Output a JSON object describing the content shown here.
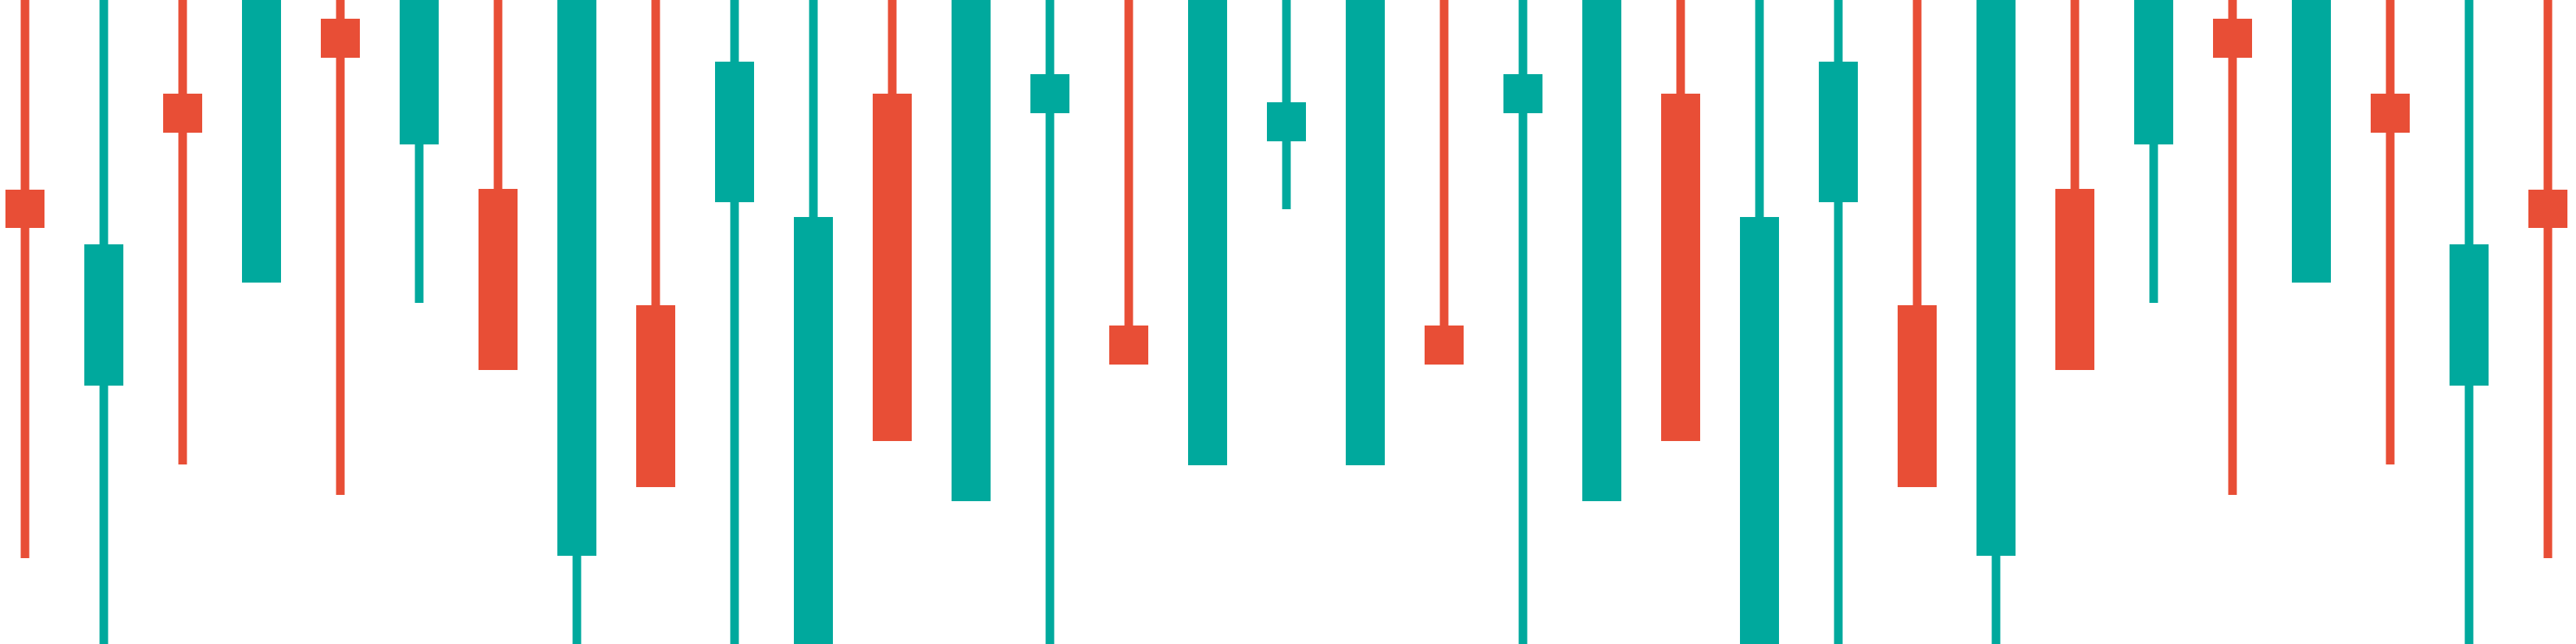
{
  "chart_data": {
    "type": "candlestick",
    "x": [
      1,
      2,
      3,
      4,
      5,
      6,
      7,
      8,
      9,
      10,
      11,
      12,
      13,
      14,
      15,
      16,
      17,
      18,
      19,
      20,
      21,
      22,
      23,
      24,
      25,
      26,
      27,
      28,
      29,
      30,
      31,
      32,
      33
    ],
    "ylim": [
      0,
      825
    ],
    "up_color": "#00A99D",
    "down_color": "#E84E36",
    "grid": false,
    "legend": "none",
    "candles": [
      {
        "open": 533,
        "close": 533,
        "high": 825,
        "low": 110,
        "dir": "down",
        "body_top": 583,
        "body_bottom": 533
      },
      {
        "open": 350,
        "close": 512,
        "high": 825,
        "low": 0,
        "dir": "up"
      },
      {
        "open": 627,
        "close": 627,
        "high": 825,
        "low": 0,
        "dir": "down",
        "body_top": 705,
        "body_bottom": 627
      },
      {
        "open": 463,
        "close": 825,
        "high": 825,
        "low": 463,
        "dir": "up"
      },
      {
        "open": 800,
        "close": 801,
        "high": 825,
        "low": 191,
        "dir": "down",
        "body_top": 801,
        "body_bottom": 751
      },
      {
        "open": 437,
        "close": 825,
        "high": 825,
        "low": 437,
        "dir": "up"
      },
      {
        "open": 437,
        "close": 437,
        "high": 825,
        "low": 0,
        "dir": "down",
        "body_top": 583,
        "body_bottom": 351
      },
      {
        "open": 113,
        "close": 294,
        "high": 825,
        "low": 0,
        "dir": "up"
      },
      {
        "open": 547,
        "close": 547,
        "high": 825,
        "low": 0,
        "dir": "down",
        "body_top": 705,
        "body_bottom": 547
      },
      {
        "open": 0,
        "close": 546,
        "high": 825,
        "low": 0,
        "dir": "up"
      },
      {
        "open": 257,
        "close": 257,
        "high": 825,
        "low": 260,
        "dir": "down",
        "body_top": 705,
        "body_bottom": 257
      },
      {
        "open": 184,
        "close": 462,
        "high": 825,
        "low": 0,
        "dir": "up"
      },
      {
        "open": 90,
        "close": 180,
        "high": 825,
        "low": 0,
        "dir": "up"
      },
      {
        "open": 408,
        "close": 408,
        "high": 825,
        "low": 0,
        "dir": "down",
        "body_top": 408,
        "body_bottom": 408
      },
      {
        "open": 229,
        "close": 825,
        "high": 825,
        "low": 229,
        "dir": "up"
      },
      {
        "open": 593,
        "close": 644,
        "high": 825,
        "low": 557,
        "dir": "up"
      },
      {
        "open": 229,
        "close": 825,
        "high": 825,
        "low": 229,
        "dir": "up"
      },
      {
        "open": 408,
        "close": 408,
        "high": 825,
        "low": 0,
        "dir": "down",
        "body_top": 408,
        "body_bottom": 408
      },
      {
        "open": 90,
        "close": 180,
        "high": 825,
        "low": 0,
        "dir": "up"
      },
      {
        "open": 184,
        "close": 462,
        "high": 825,
        "low": 0,
        "dir": "up"
      },
      {
        "open": 257,
        "close": 257,
        "high": 825,
        "low": 260,
        "dir": "down",
        "body_top": 705,
        "body_bottom": 257
      },
      {
        "open": 0,
        "close": 546,
        "high": 825,
        "low": 0,
        "dir": "up"
      },
      {
        "open": 113,
        "close": 294,
        "high": 825,
        "low": 0,
        "dir": "up"
      },
      {
        "open": 437,
        "close": 437,
        "high": 825,
        "low": 0,
        "dir": "down",
        "body_top": 583,
        "body_bottom": 351
      },
      {
        "open": 437,
        "close": 825,
        "high": 825,
        "low": 437,
        "dir": "up"
      },
      {
        "open": 800,
        "close": 801,
        "high": 825,
        "low": 191,
        "dir": "down",
        "body_top": 801,
        "body_bottom": 751
      },
      {
        "open": 463,
        "close": 825,
        "high": 825,
        "low": 463,
        "dir": "up"
      },
      {
        "open": 627,
        "close": 627,
        "high": 825,
        "low": 0,
        "dir": "down",
        "body_top": 705,
        "body_bottom": 627
      },
      {
        "open": 350,
        "close": 512,
        "high": 825,
        "low": 0,
        "dir": "up"
      },
      {
        "open": 533,
        "close": 533,
        "high": 825,
        "low": 110,
        "dir": "down",
        "body_top": 583,
        "body_bottom": 533
      },
      {
        "open": 229,
        "close": 825,
        "high": 825,
        "low": 229,
        "dir": "up"
      },
      {
        "open": 408,
        "close": 408,
        "high": 825,
        "low": 0,
        "dir": "down",
        "body_top": 408,
        "body_bottom": 408
      },
      {
        "open": 184,
        "close": 462,
        "high": 825,
        "low": 0,
        "dir": "up"
      }
    ]
  }
}
